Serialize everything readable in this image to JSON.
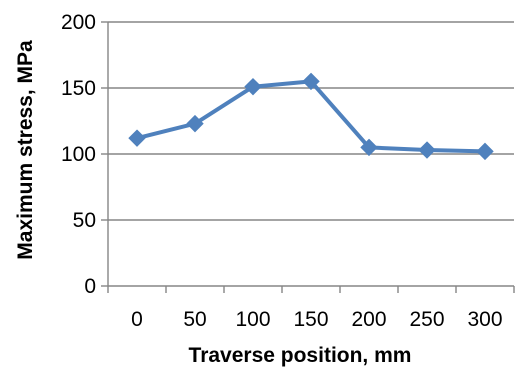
{
  "chart_data": {
    "type": "line",
    "title": "",
    "xlabel": "Traverse position, mm",
    "ylabel": "Maximum stress, MPa",
    "categories": [
      "0",
      "50",
      "100",
      "150",
      "200",
      "250",
      "300"
    ],
    "x": [
      0,
      50,
      100,
      150,
      200,
      250,
      300
    ],
    "series": [
      {
        "values": [
          112,
          123,
          151,
          155,
          105,
          103,
          102
        ],
        "color": "#4f81bd",
        "marker": "diamond"
      }
    ],
    "ylim": [
      0,
      200
    ],
    "yticks": [
      0,
      50,
      100,
      150,
      200
    ],
    "grid": "horizontal",
    "legend": "none",
    "axis_color": "#868686",
    "grid_color": "#868686"
  }
}
